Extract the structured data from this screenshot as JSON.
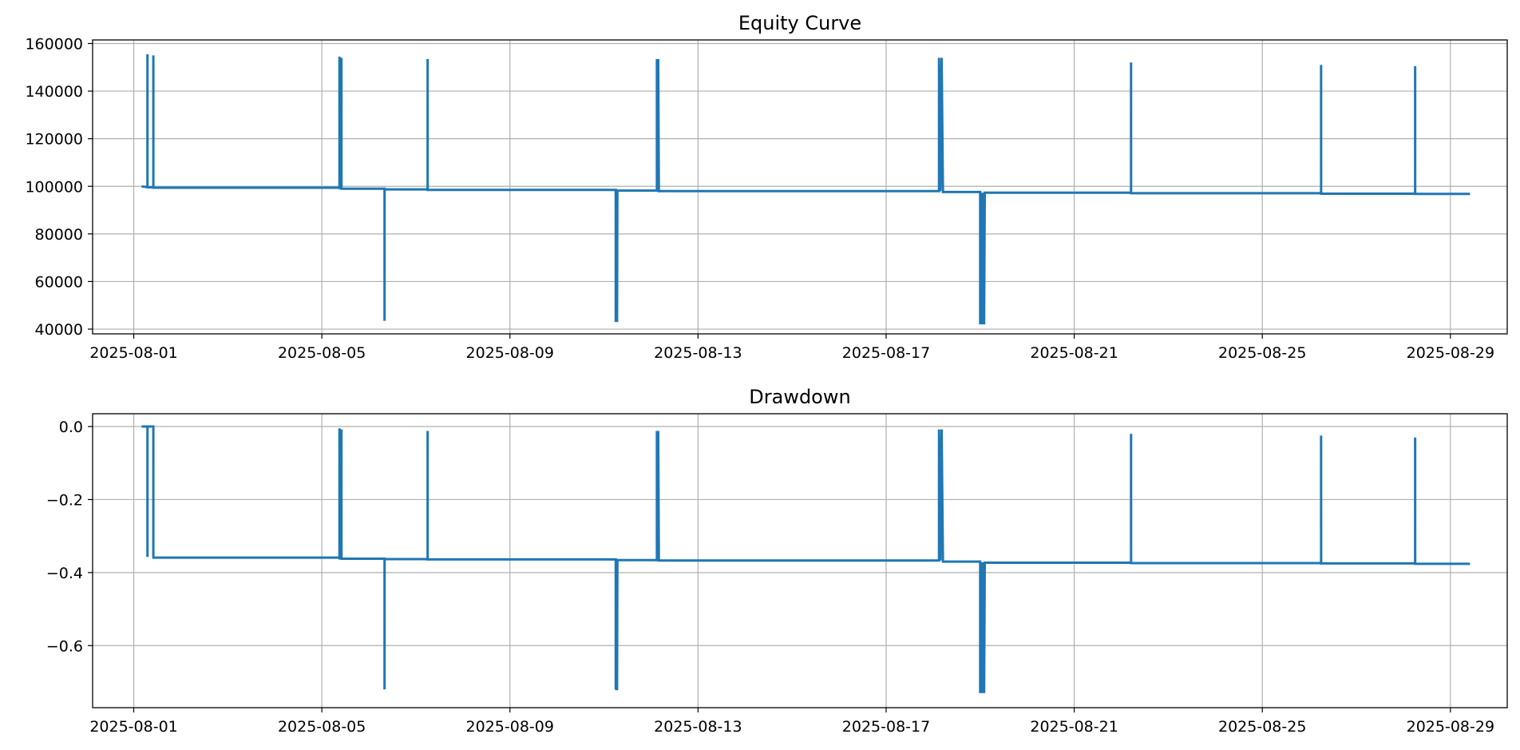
{
  "chart_data": [
    {
      "type": "line",
      "title": "Equity Curve",
      "xlabel": "",
      "ylabel": "",
      "x_range": [
        "2025-07-31T03:00",
        "2025-08-30T05:00"
      ],
      "ylim": [
        38000,
        161500
      ],
      "grid": true,
      "color": "#1f77b4",
      "x_ticks": [
        "2025-08-01",
        "2025-08-05",
        "2025-08-09",
        "2025-08-13",
        "2025-08-17",
        "2025-08-21",
        "2025-08-25",
        "2025-08-29"
      ],
      "y_ticks": [
        40000,
        60000,
        80000,
        100000,
        120000,
        140000,
        160000
      ],
      "y_tick_labels": [
        "40000",
        "60000",
        "80000",
        "100000",
        "120000",
        "140000",
        "160000"
      ],
      "series": [
        {
          "points": [
            [
              "2025-08-01T04:00",
              99900
            ],
            [
              "2025-08-01T07:00",
              99700
            ],
            [
              "2025-08-01T07:00",
              155500
            ],
            [
              "2025-08-01T07:01",
              99600
            ],
            [
              "2025-08-01T10:00",
              99600
            ],
            [
              "2025-08-01T10:00",
              155000
            ],
            [
              "2025-08-01T10:01",
              99400
            ],
            [
              "2025-08-05T09:00",
              99400
            ],
            [
              "2025-08-05T09:00",
              154500
            ],
            [
              "2025-08-05T09:01",
              99300
            ],
            [
              "2025-08-05T10:00",
              99300
            ],
            [
              "2025-08-05T10:00",
              154000
            ],
            [
              "2025-08-05T10:01",
              99000
            ],
            [
              "2025-08-06T08:00",
              99000
            ],
            [
              "2025-08-06T08:00",
              43500
            ],
            [
              "2025-08-06T08:01",
              98700
            ],
            [
              "2025-08-07T06:00",
              98700
            ],
            [
              "2025-08-07T06:00",
              153500
            ],
            [
              "2025-08-07T06:01",
              98500
            ],
            [
              "2025-08-11T06:00",
              98500
            ],
            [
              "2025-08-11T06:00",
              43000
            ],
            [
              "2025-08-11T06:10",
              98200
            ],
            [
              "2025-08-11T06:20",
              43000
            ],
            [
              "2025-08-11T06:30",
              98200
            ],
            [
              "2025-08-11T06:40",
              43000
            ],
            [
              "2025-08-11T06:50",
              98200
            ],
            [
              "2025-08-12T03:00",
              98200
            ],
            [
              "2025-08-12T03:00",
              153500
            ],
            [
              "2025-08-12T03:20",
              98200
            ],
            [
              "2025-08-12T03:40",
              153500
            ],
            [
              "2025-08-12T04:00",
              98000
            ],
            [
              "2025-08-18T03:00",
              98000
            ],
            [
              "2025-08-18T03:00",
              154000
            ],
            [
              "2025-08-18T03:40",
              98000
            ],
            [
              "2025-08-18T04:20",
              154000
            ],
            [
              "2025-08-18T05:00",
              97600
            ],
            [
              "2025-08-19T00:00",
              97600
            ],
            [
              "2025-08-19T00:00",
              42000
            ],
            [
              "2025-08-19T00:20",
              97300
            ],
            [
              "2025-08-19T00:40",
              42000
            ],
            [
              "2025-08-19T01:00",
              97300
            ],
            [
              "2025-08-19T01:20",
              42000
            ],
            [
              "2025-08-19T01:40",
              97300
            ],
            [
              "2025-08-19T02:00",
              42000
            ],
            [
              "2025-08-19T02:20",
              97300
            ],
            [
              "2025-08-22T05:00",
              97300
            ],
            [
              "2025-08-22T05:00",
              152000
            ],
            [
              "2025-08-22T05:01",
              97100
            ],
            [
              "2025-08-26T06:00",
              97100
            ],
            [
              "2025-08-26T06:00",
              151000
            ],
            [
              "2025-08-26T06:01",
              96900
            ],
            [
              "2025-08-28T06:00",
              96900
            ],
            [
              "2025-08-28T06:00",
              150500
            ],
            [
              "2025-08-28T06:01",
              96800
            ],
            [
              "2025-08-29T10:00",
              96800
            ]
          ]
        }
      ]
    },
    {
      "type": "line",
      "title": "Drawdown",
      "xlabel": "",
      "ylabel": "",
      "x_range": [
        "2025-07-31T03:00",
        "2025-08-30T05:00"
      ],
      "ylim": [
        -0.77,
        0.035
      ],
      "grid": true,
      "color": "#1f77b4",
      "x_ticks": [
        "2025-08-01",
        "2025-08-05",
        "2025-08-09",
        "2025-08-13",
        "2025-08-17",
        "2025-08-21",
        "2025-08-25",
        "2025-08-29"
      ],
      "y_ticks": [
        -0.6,
        -0.4,
        -0.2,
        0.0
      ],
      "y_tick_labels": [
        "−0.6",
        "−0.4",
        "−0.2",
        "0.0"
      ],
      "series": [
        {
          "points": [
            [
              "2025-08-01T04:00",
              0.0
            ],
            [
              "2025-08-01T07:00",
              0.0
            ],
            [
              "2025-08-01T07:00",
              -0.357
            ],
            [
              "2025-08-01T07:01",
              0.0
            ],
            [
              "2025-08-01T10:00",
              0.0
            ],
            [
              "2025-08-01T10:00",
              -0.358
            ],
            [
              "2025-08-01T10:01",
              -0.359
            ],
            [
              "2025-08-05T09:00",
              -0.359
            ],
            [
              "2025-08-05T09:00",
              -0.005
            ],
            [
              "2025-08-05T09:01",
              -0.361
            ],
            [
              "2025-08-05T10:00",
              -0.361
            ],
            [
              "2025-08-05T10:00",
              -0.008
            ],
            [
              "2025-08-05T10:01",
              -0.362
            ],
            [
              "2025-08-06T08:00",
              -0.362
            ],
            [
              "2025-08-06T08:00",
              -0.72
            ],
            [
              "2025-08-06T08:01",
              -0.363
            ],
            [
              "2025-08-07T06:00",
              -0.363
            ],
            [
              "2025-08-07T06:00",
              -0.012
            ],
            [
              "2025-08-07T06:01",
              -0.364
            ],
            [
              "2025-08-11T06:00",
              -0.364
            ],
            [
              "2025-08-11T06:00",
              -0.72
            ],
            [
              "2025-08-11T06:10",
              -0.366
            ],
            [
              "2025-08-11T06:20",
              -0.722
            ],
            [
              "2025-08-11T06:30",
              -0.366
            ],
            [
              "2025-08-11T06:40",
              -0.722
            ],
            [
              "2025-08-11T06:50",
              -0.366
            ],
            [
              "2025-08-12T03:00",
              -0.366
            ],
            [
              "2025-08-12T03:00",
              -0.012
            ],
            [
              "2025-08-12T03:20",
              -0.366
            ],
            [
              "2025-08-12T03:40",
              -0.012
            ],
            [
              "2025-08-12T04:00",
              -0.367
            ],
            [
              "2025-08-18T03:00",
              -0.367
            ],
            [
              "2025-08-18T03:00",
              -0.008
            ],
            [
              "2025-08-18T03:40",
              -0.367
            ],
            [
              "2025-08-18T04:20",
              -0.008
            ],
            [
              "2025-08-18T05:00",
              -0.37
            ],
            [
              "2025-08-19T00:00",
              -0.37
            ],
            [
              "2025-08-19T00:00",
              -0.73
            ],
            [
              "2025-08-19T00:20",
              -0.372
            ],
            [
              "2025-08-19T00:40",
              -0.73
            ],
            [
              "2025-08-19T01:00",
              -0.372
            ],
            [
              "2025-08-19T01:20",
              -0.73
            ],
            [
              "2025-08-19T01:40",
              -0.372
            ],
            [
              "2025-08-19T02:00",
              -0.73
            ],
            [
              "2025-08-19T02:20",
              -0.373
            ],
            [
              "2025-08-22T05:00",
              -0.373
            ],
            [
              "2025-08-22T05:00",
              -0.02
            ],
            [
              "2025-08-22T05:01",
              -0.374
            ],
            [
              "2025-08-26T06:00",
              -0.374
            ],
            [
              "2025-08-26T06:00",
              -0.025
            ],
            [
              "2025-08-26T06:01",
              -0.375
            ],
            [
              "2025-08-28T06:00",
              -0.375
            ],
            [
              "2025-08-28T06:00",
              -0.03
            ],
            [
              "2025-08-28T06:01",
              -0.376
            ],
            [
              "2025-08-29T10:00",
              -0.376
            ]
          ]
        }
      ]
    }
  ]
}
